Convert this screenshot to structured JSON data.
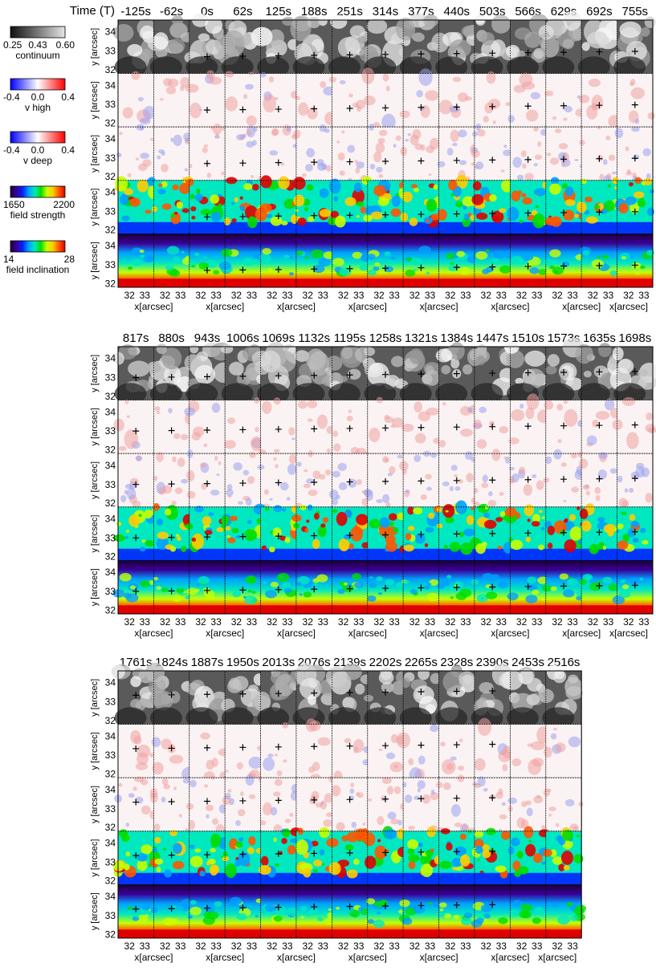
{
  "figure": {
    "time_axis_label": "Time (T)",
    "y_axis_label": "y [arcsec]",
    "x_axis_label": "x[arcsec]",
    "y_ticks": [
      "34",
      "33",
      "32"
    ],
    "x_ticks": [
      "32",
      "33"
    ],
    "colorbars": [
      {
        "title": "continuum",
        "ticks": [
          "0.25",
          "0.43",
          "0.60"
        ],
        "colormap": "gray"
      },
      {
        "title": "v high",
        "ticks": [
          "-0.4",
          "0.0",
          "0.4"
        ],
        "colormap": "bwr"
      },
      {
        "title": "v deep",
        "ticks": [
          "-0.4",
          "0.0",
          "0.4"
        ],
        "colormap": "bwr"
      },
      {
        "title": "field strength",
        "ticks": [
          "1650",
          "2200"
        ],
        "colormap": "rainbow"
      },
      {
        "title": "field inclination",
        "ticks": [
          "14",
          "28"
        ],
        "colormap": "rainbow"
      }
    ],
    "rows": [
      "continuum",
      "v high",
      "v deep",
      "field strength",
      "field inclination"
    ],
    "blocks": [
      {
        "times": [
          "-125s",
          "-62s",
          "0s",
          "62s",
          "125s",
          "188s",
          "251s",
          "314s",
          "377s",
          "440s",
          "503s",
          "566s",
          "629s",
          "692s",
          "755s"
        ],
        "marker": [
          false,
          false,
          true,
          true,
          true,
          true,
          true,
          true,
          true,
          true,
          true,
          true,
          true,
          true,
          true
        ]
      },
      {
        "times": [
          "817s",
          "880s",
          "943s",
          "1006s",
          "1069s",
          "1132s",
          "1195s",
          "1258s",
          "1321s",
          "1384s",
          "1447s",
          "1510s",
          "1573s",
          "1635s",
          "1698s"
        ],
        "marker": [
          true,
          true,
          true,
          true,
          true,
          true,
          true,
          true,
          true,
          true,
          true,
          true,
          true,
          true,
          true
        ]
      },
      {
        "times": [
          "1761s",
          "1824s",
          "1887s",
          "1950s",
          "2013s",
          "2076s",
          "2139s",
          "2202s",
          "2265s",
          "2328s",
          "2390s",
          "2453s",
          "2516s"
        ],
        "marker": [
          true,
          true,
          true,
          true,
          true,
          true,
          true,
          true,
          true,
          true,
          true,
          false,
          false
        ]
      }
    ]
  },
  "colors": {
    "gray_dark": "#111111",
    "gray_light": "#e6e6e6",
    "v_blue": "#0000ff",
    "v_white": "#ffffff",
    "v_red": "#ff0000",
    "rainbow": [
      "#1a0033",
      "#3a0099",
      "#0022ff",
      "#00a0ff",
      "#00e8c0",
      "#00dd00",
      "#c8ff00",
      "#ffcc00",
      "#ff5500",
      "#e00000"
    ]
  }
}
